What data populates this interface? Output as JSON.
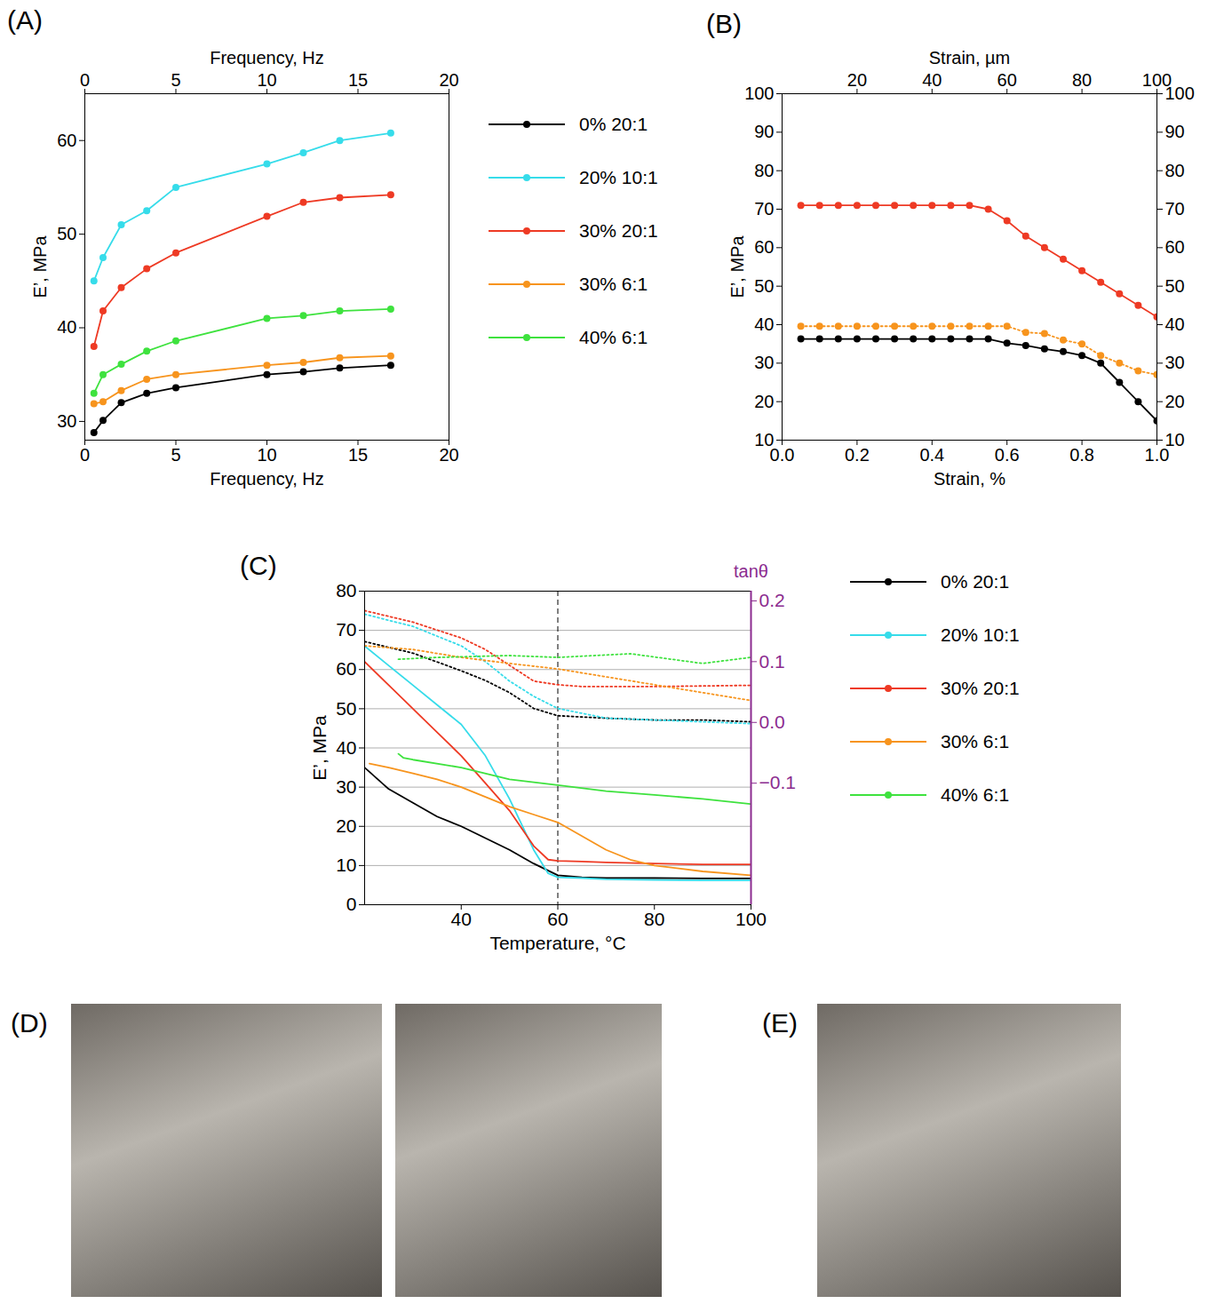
{
  "chart_data": [
    {
      "type": "line",
      "panel": "(A)",
      "xlabel": "Frequency, Hz",
      "x2label": "Frequency, Hz",
      "ylabel": "E’, MPa",
      "xlim": [
        0,
        20
      ],
      "xticks": [
        0,
        5,
        10,
        15,
        20
      ],
      "x2lim": [
        0,
        20
      ],
      "x2ticks": [
        0,
        5,
        10,
        15,
        20
      ],
      "ylim": [
        28,
        65
      ],
      "yticks": [
        30,
        40,
        50,
        60
      ],
      "legend": "right",
      "marker": "circle",
      "x": [
        0.5,
        1,
        2,
        3.4,
        5,
        10,
        12,
        14,
        16.8
      ],
      "series": [
        {
          "name": "0% 20:1",
          "color": "#000000",
          "values": [
            28.8,
            30.1,
            32,
            33,
            33.6,
            35,
            35.3,
            35.7,
            36
          ]
        },
        {
          "name": "20% 10:1",
          "color": "#36dcea",
          "values": [
            45,
            47.5,
            51,
            52.5,
            55,
            57.5,
            58.7,
            60,
            60.8
          ]
        },
        {
          "name": "30% 20:1",
          "color": "#ee3a24",
          "values": [
            38,
            41.8,
            44.3,
            46.3,
            48,
            51.9,
            53.4,
            53.9,
            54.2
          ]
        },
        {
          "name": "30% 6:1",
          "color": "#f7941d",
          "values": [
            31.9,
            32.1,
            33.3,
            34.5,
            35,
            36,
            36.3,
            36.8,
            37
          ]
        },
        {
          "name": "40% 6:1",
          "color": "#3ee23e",
          "values": [
            33,
            35,
            36.1,
            37.5,
            38.6,
            41,
            41.3,
            41.8,
            42
          ]
        }
      ]
    },
    {
      "type": "line",
      "panel": "(B)",
      "xlabel": "Strain, %",
      "x2label": "Strain, µm",
      "ylabel": "E’, MPa",
      "xlim": [
        0,
        1
      ],
      "xticks": [
        {
          "value": 0,
          "label": "0.0"
        },
        0.2,
        0.4,
        0.6,
        0.8,
        {
          "value": 1,
          "label": "1.0"
        }
      ],
      "x2lim": [
        0,
        100
      ],
      "x2ticks": [
        20,
        40,
        60,
        80,
        100
      ],
      "ylim": [
        10,
        100
      ],
      "yticks": [
        10,
        20,
        30,
        40,
        50,
        60,
        70,
        80,
        90,
        100
      ],
      "y2lim": [
        10,
        100
      ],
      "y2ticks": [
        10,
        20,
        30,
        40,
        50,
        60,
        70,
        80,
        90,
        100
      ],
      "marker": "circle",
      "x": [
        0.05,
        0.1,
        0.15,
        0.2,
        0.25,
        0.3,
        0.35,
        0.4,
        0.45,
        0.5,
        0.55,
        0.6,
        0.65,
        0.7,
        0.75,
        0.8,
        0.85,
        0.9,
        0.95,
        1.0
      ],
      "series": [
        {
          "color": "#ee3a24",
          "values": [
            71,
            71,
            71,
            71,
            71,
            71,
            71,
            71,
            71,
            71,
            70,
            67,
            63,
            60,
            57,
            54,
            51,
            48,
            45,
            42
          ]
        },
        {
          "color": "#f7941d",
          "line_style": "dotted",
          "values": [
            39.6,
            39.6,
            39.6,
            39.6,
            39.6,
            39.6,
            39.6,
            39.6,
            39.6,
            39.6,
            39.6,
            39.6,
            38,
            37.7,
            36,
            35,
            32,
            30,
            28,
            27
          ]
        },
        {
          "color": "#000000",
          "values": [
            36.3,
            36.3,
            36.3,
            36.3,
            36.3,
            36.3,
            36.3,
            36.3,
            36.3,
            36.3,
            36.3,
            35.2,
            34.6,
            33.7,
            33,
            32,
            30,
            25,
            20,
            15
          ]
        }
      ]
    },
    {
      "type": "line",
      "panel": "(C)",
      "xlabel": "Temperature, °C",
      "ylabel": "E’, MPa",
      "y2label": "tanθ",
      "xlim": [
        20,
        100
      ],
      "xticks": [
        40,
        60,
        80,
        100
      ],
      "ylim": [
        0,
        80
      ],
      "yticks": [
        0,
        10,
        20,
        30,
        40,
        50,
        60,
        70,
        80
      ],
      "y2lim": [
        -0.3,
        0.216
      ],
      "y2ticks": [
        {
          "value": -0.1,
          "label": "−0.1"
        },
        {
          "value": 0,
          "label": "0.0"
        },
        0.1,
        0.2
      ],
      "grid": true,
      "vline": 60,
      "legend": "right",
      "series": [
        {
          "name": "0% 20:1",
          "color": "#000000",
          "x": [
            20,
            25,
            30,
            35,
            40,
            45,
            50,
            55,
            60,
            65,
            70,
            80,
            90,
            100
          ],
          "values": [
            35,
            29.5,
            26,
            22.5,
            20,
            17,
            14,
            10.5,
            7.5,
            7,
            6.8,
            6.8,
            6.7,
            6.7
          ]
        },
        {
          "name": "20% 10:1",
          "color": "#36dcea",
          "x": [
            20,
            25,
            30,
            35,
            40,
            45,
            50,
            55,
            58,
            60,
            65,
            70,
            80,
            90,
            100
          ],
          "values": [
            66,
            61,
            56,
            51,
            46,
            38,
            27,
            14,
            8,
            7,
            6.8,
            6.5,
            6.3,
            6.2,
            6.2
          ]
        },
        {
          "name": "30% 20:1",
          "color": "#ee3a24",
          "x": [
            20,
            25,
            30,
            35,
            40,
            45,
            50,
            55,
            58,
            60,
            65,
            70,
            80,
            90,
            100
          ],
          "values": [
            62,
            56,
            50,
            44,
            38,
            31,
            24,
            15,
            11.5,
            11.2,
            11,
            10.8,
            10.5,
            10.3,
            10.3
          ]
        },
        {
          "name": "30% 6:1",
          "color": "#f7941d",
          "x": [
            21,
            25,
            30,
            35,
            40,
            45,
            50,
            55,
            60,
            65,
            70,
            75,
            80,
            90,
            100
          ],
          "values": [
            36,
            35,
            33.5,
            32,
            30,
            27.5,
            25,
            23,
            21,
            17.5,
            14,
            11.5,
            10,
            8.5,
            7.5
          ]
        },
        {
          "name": "40% 6:1",
          "color": "#3ee23e",
          "x": [
            27,
            28,
            30,
            40,
            50,
            60,
            70,
            80,
            90,
            100
          ],
          "values": [
            38.5,
            37.5,
            37,
            35,
            32,
            30.5,
            29,
            28,
            27,
            25.7
          ]
        },
        {
          "name": "0% 20:1",
          "color": "#000000",
          "axis": "y2",
          "line_style": "dotted",
          "x": [
            20,
            30,
            40,
            45,
            50,
            55,
            60,
            70,
            80,
            90,
            100
          ],
          "values": [
            0.133,
            0.114,
            0.085,
            0.069,
            0.049,
            0.023,
            0.011,
            0.007,
            0.004,
            0.004,
            0.001
          ]
        },
        {
          "name": "20% 10:1",
          "color": "#36dcea",
          "axis": "y2",
          "line_style": "dotted",
          "x": [
            20,
            30,
            40,
            45,
            50,
            55,
            60,
            70,
            80,
            90,
            100
          ],
          "values": [
            0.178,
            0.158,
            0.126,
            0.1,
            0.068,
            0.043,
            0.023,
            0.007,
            0.004,
            0.001,
            -0.002
          ]
        },
        {
          "name": "30% 20:1",
          "color": "#ee3a24",
          "axis": "y2",
          "line_style": "dotted",
          "x": [
            20,
            30,
            40,
            45,
            50,
            55,
            60,
            65,
            70,
            80,
            90,
            100
          ],
          "values": [
            0.184,
            0.165,
            0.139,
            0.12,
            0.094,
            0.068,
            0.062,
            0.059,
            0.059,
            0.059,
            0.06,
            0.061
          ]
        },
        {
          "name": "30% 6:1",
          "color": "#f7941d",
          "axis": "y2",
          "line_style": "dotted",
          "x": [
            20,
            30,
            40,
            50,
            60,
            70,
            80,
            90,
            100
          ],
          "values": [
            0.126,
            0.12,
            0.107,
            0.097,
            0.088,
            0.075,
            0.062,
            0.049,
            0.036
          ]
        },
        {
          "name": "40% 6:1",
          "color": "#3ee23e",
          "axis": "y2",
          "line_style": "dotted",
          "x": [
            27,
            35,
            50,
            60,
            75,
            90,
            100
          ],
          "values": [
            0.104,
            0.107,
            0.11,
            0.107,
            0.113,
            0.097,
            0.107
          ]
        }
      ]
    },
    {
      "type": "image",
      "panel": "(D)"
    },
    {
      "type": "image",
      "panel": "(E)"
    }
  ]
}
